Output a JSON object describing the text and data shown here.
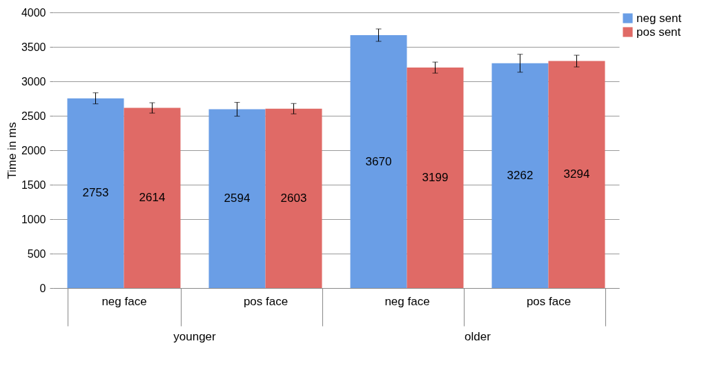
{
  "chart_data": {
    "type": "bar",
    "ylabel": "Time in ms",
    "categories": [
      "neg face",
      "pos face",
      "neg face",
      "pos face"
    ],
    "series": [
      {
        "name": "neg sent",
        "color": "#6a9ee6",
        "values": [
          2753,
          2594,
          3670,
          3262
        ],
        "errors": [
          80,
          100,
          90,
          130
        ]
      },
      {
        "name": "pos sent",
        "color": "#e06a66",
        "values": [
          2614,
          2603,
          3199,
          3294
        ],
        "errors": [
          75,
          75,
          80,
          85
        ]
      }
    ],
    "ylim": [
      0,
      4000
    ],
    "yticks": [
      0,
      500,
      1000,
      1500,
      2000,
      2500,
      3000,
      3500,
      4000
    ],
    "grid": "y",
    "legend": "top right",
    "data_labels": true,
    "annotations": [
      "younger",
      "older"
    ]
  }
}
